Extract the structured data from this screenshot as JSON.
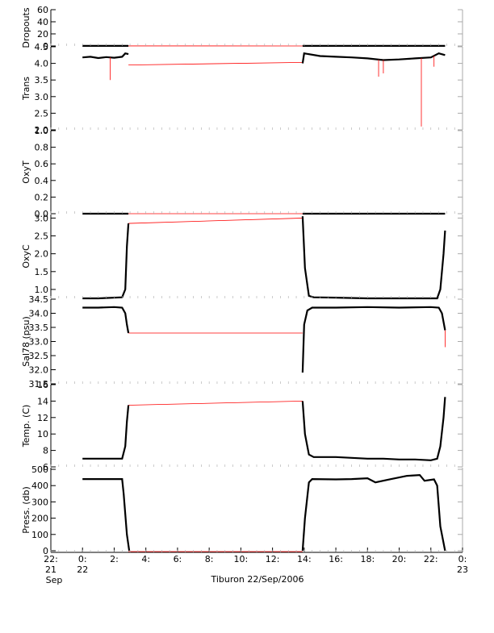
{
  "caption": "Tiburon 22/Sep/2006",
  "time_axis": {
    "ticks": [
      {
        "t": -2,
        "label": "22:",
        "sub": [
          "21",
          "Sep"
        ]
      },
      {
        "t": 0,
        "label": "0:",
        "sub": [
          "22"
        ]
      },
      {
        "t": 2,
        "label": "2:",
        "sub": []
      },
      {
        "t": 4,
        "label": "4:",
        "sub": []
      },
      {
        "t": 6,
        "label": "6:",
        "sub": []
      },
      {
        "t": 8,
        "label": "8:",
        "sub": []
      },
      {
        "t": 10,
        "label": "10:",
        "sub": []
      },
      {
        "t": 12,
        "label": "12:",
        "sub": []
      },
      {
        "t": 14,
        "label": "14:",
        "sub": []
      },
      {
        "t": 16,
        "label": "16:",
        "sub": []
      },
      {
        "t": 18,
        "label": "18:",
        "sub": []
      },
      {
        "t": 20,
        "label": "20:",
        "sub": []
      },
      {
        "t": 22,
        "label": "22:",
        "sub": []
      },
      {
        "t": 24,
        "label": "0:",
        "sub": [
          "23"
        ]
      }
    ],
    "range_hours": [
      -2,
      24
    ]
  },
  "colors": {
    "data": "#000000",
    "gap_line": "#ff0000",
    "axes": "#000000",
    "minor": "#aaaaaa"
  },
  "chart_data": [
    {
      "type": "line",
      "ylabel": "Dropouts",
      "ylim": [
        0,
        60
      ],
      "ticks": [
        0,
        10,
        20,
        30,
        40,
        50,
        60
      ],
      "tick_labels": [
        "0",
        "20",
        "40",
        "60"
      ],
      "tick_label_values": [
        0,
        20,
        40,
        60
      ],
      "segments": [
        {
          "x": [
            0,
            2.9
          ],
          "y": [
            0.1,
            0.1
          ]
        },
        {
          "x": [
            13.9,
            22.9
          ],
          "y": [
            0.1,
            0.1
          ]
        }
      ],
      "gap": {
        "x": [
          2.9,
          13.9
        ],
        "y": [
          0.1,
          -5
        ]
      }
    },
    {
      "type": "line",
      "ylabel": "Trans",
      "ylim": [
        2,
        4.5
      ],
      "tick_label_values": [
        2.0,
        2.5,
        3.0,
        3.5,
        4.0,
        4.5
      ],
      "tick_labels": [
        "2.0",
        "2.5",
        "3.0",
        "3.5",
        "4.0",
        "4.5"
      ],
      "segments": [
        {
          "x": [
            0,
            0.5,
            1.0,
            1.5,
            2.0,
            2.5,
            2.7,
            2.9
          ],
          "y": [
            4.18,
            4.2,
            4.16,
            4.19,
            4.17,
            4.2,
            4.3,
            4.28
          ]
        },
        {
          "x": [
            13.9,
            14.0,
            15,
            16,
            17,
            18,
            19,
            20,
            21,
            22,
            22.5,
            22.9
          ],
          "y": [
            4.0,
            4.3,
            4.22,
            4.2,
            4.18,
            4.15,
            4.1,
            4.12,
            4.15,
            4.18,
            4.3,
            4.25
          ]
        }
      ],
      "spikes": [
        {
          "x": 1.75,
          "y": 3.5
        },
        {
          "x": 18.7,
          "y": 3.6
        },
        {
          "x": 19.0,
          "y": 3.7
        },
        {
          "x": 21.4,
          "y": 2.1
        },
        {
          "x": 22.2,
          "y": 3.9
        }
      ],
      "gap": {
        "x": [
          2.9,
          13.9
        ],
        "y": [
          3.95,
          4.03
        ]
      }
    },
    {
      "type": "line",
      "ylabel": "OxyT",
      "ylim": [
        0,
        1.0
      ],
      "tick_label_values": [
        0.0,
        0.2,
        0.4,
        0.6,
        0.8,
        1.0
      ],
      "tick_labels": [
        "0.0",
        "0.2",
        "0.4",
        "0.6",
        "0.8",
        "1.0"
      ],
      "segments": [
        {
          "x": [
            0,
            2.9
          ],
          "y": [
            -0.03,
            -0.03
          ]
        },
        {
          "x": [
            13.9,
            22.9
          ],
          "y": [
            -0.03,
            -0.03
          ]
        }
      ],
      "gap": {
        "x": [
          2.9,
          13.9
        ],
        "y": [
          -0.03,
          -0.03
        ]
      }
    },
    {
      "type": "line",
      "ylabel": "OxyC",
      "ylim": [
        0.75,
        3.1
      ],
      "tick_label_values": [
        1.0,
        1.5,
        2.0,
        2.5,
        3.0
      ],
      "tick_labels": [
        "1.0",
        "1.5",
        "2.0",
        "2.5",
        "3.0"
      ],
      "segments": [
        {
          "x": [
            0,
            1.0,
            2.5,
            2.7,
            2.8,
            2.9
          ],
          "y": [
            0.75,
            0.75,
            0.78,
            1.0,
            2.2,
            2.85
          ]
        },
        {
          "x": [
            13.9,
            14.05,
            14.3,
            14.6,
            16,
            18,
            19,
            20,
            21,
            22,
            22.4,
            22.6,
            22.8,
            22.9
          ],
          "y": [
            3.05,
            1.6,
            0.82,
            0.78,
            0.77,
            0.75,
            0.74,
            0.73,
            0.72,
            0.71,
            0.75,
            1.0,
            2.0,
            2.65
          ]
        }
      ],
      "gap": {
        "x": [
          2.9,
          13.9
        ],
        "y": [
          2.85,
          3.0
        ]
      }
    },
    {
      "type": "line",
      "ylabel": "Sal78 (psu)",
      "ylim": [
        31.5,
        34.5
      ],
      "tick_label_values": [
        31.5,
        32.0,
        32.5,
        33.0,
        33.5,
        34.0,
        34.5
      ],
      "tick_labels": [
        "31.5",
        "32.0",
        "32.5",
        "33.0",
        "33.5",
        "34.0",
        "34.5"
      ],
      "segments": [
        {
          "x": [
            0,
            1.0,
            2.0,
            2.5,
            2.7,
            2.8,
            2.9
          ],
          "y": [
            34.2,
            34.2,
            34.22,
            34.2,
            34.0,
            33.6,
            33.3
          ]
        },
        {
          "x": [
            13.9,
            14.0,
            14.2,
            14.5,
            16,
            18,
            20,
            22,
            22.5,
            22.7,
            22.9
          ],
          "y": [
            31.9,
            33.6,
            34.1,
            34.2,
            34.2,
            34.22,
            34.2,
            34.22,
            34.2,
            34.0,
            33.4
          ]
        }
      ],
      "spikes": [
        {
          "x": 22.9,
          "y": 32.8
        }
      ],
      "gap": {
        "x": [
          2.9,
          13.9
        ],
        "y": [
          33.3,
          33.3
        ]
      }
    },
    {
      "type": "line",
      "ylabel": "Temp. (C)",
      "ylim": [
        6,
        16
      ],
      "tick_label_values": [
        6,
        8,
        10,
        12,
        14,
        16
      ],
      "tick_labels": [
        "6",
        "8",
        "10",
        "12",
        "14",
        "16"
      ],
      "segments": [
        {
          "x": [
            0,
            1.0,
            2.5,
            2.7,
            2.8,
            2.9
          ],
          "y": [
            7.0,
            7.0,
            7.0,
            8.5,
            11.5,
            13.5
          ]
        },
        {
          "x": [
            13.9,
            14.05,
            14.3,
            14.6,
            16,
            17,
            18,
            19,
            20,
            21,
            22,
            22.4,
            22.6,
            22.8,
            22.9
          ],
          "y": [
            14.0,
            10.0,
            7.5,
            7.2,
            7.2,
            7.1,
            7.0,
            7.0,
            6.9,
            6.9,
            6.8,
            7.0,
            8.5,
            12.0,
            14.5
          ]
        }
      ],
      "gap": {
        "x": [
          2.9,
          13.9
        ],
        "y": [
          13.5,
          14.0
        ]
      }
    },
    {
      "type": "line",
      "ylabel": "Press. (db)",
      "ylim": [
        -10,
        510
      ],
      "tick_label_values": [
        0,
        100,
        200,
        300,
        400,
        500
      ],
      "tick_labels": [
        "0",
        "100",
        "200",
        "300",
        "400",
        "500"
      ],
      "segments": [
        {
          "x": [
            0,
            2.5,
            2.6,
            2.8,
            2.95
          ],
          "y": [
            440,
            440,
            350,
            100,
            0
          ]
        },
        {
          "x": [
            13.9,
            14.05,
            14.3,
            14.5,
            16,
            17,
            18,
            18.5,
            19.5,
            20.5,
            21.3,
            21.6,
            22.2,
            22.4,
            22.6,
            22.9
          ],
          "y": [
            0,
            200,
            420,
            440,
            438,
            440,
            445,
            420,
            440,
            460,
            465,
            430,
            438,
            400,
            150,
            0
          ]
        }
      ],
      "gap": {
        "x": [
          2.9,
          13.9
        ],
        "y": [
          -5,
          -5
        ]
      }
    }
  ]
}
